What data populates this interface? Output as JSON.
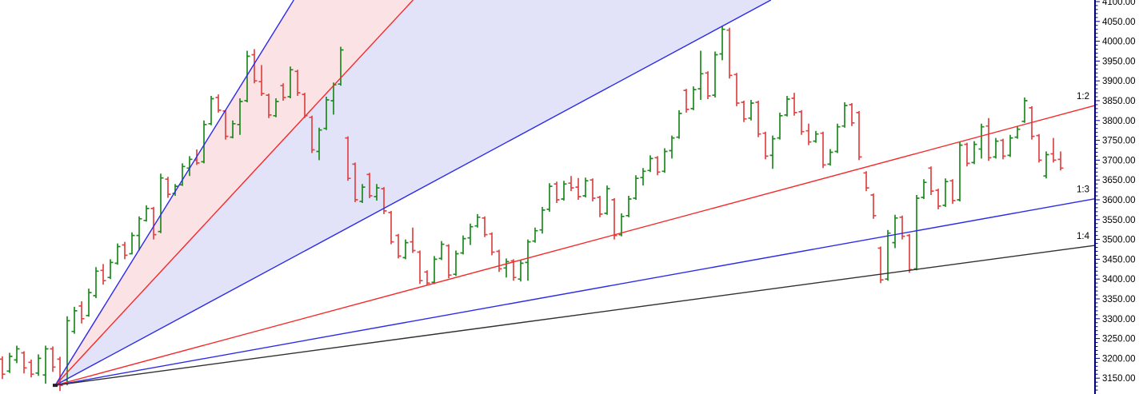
{
  "chart_data": {
    "type": "ohlc_bar",
    "description": "Daily OHLC bar chart with a Gann fan drawn from a swing low; fan rays labelled 1:2, 1:3, 1:4 at the right price axis",
    "price_axis": {
      "side": "right",
      "major_step": 50,
      "minor_step": 10,
      "visible_range": [
        3100,
        4105
      ],
      "labels": [
        "4100.00",
        "4050.00",
        "4000.00",
        "3950.00",
        "3900.00",
        "3850.00",
        "3800.00",
        "3750.00",
        "3700.00",
        "3650.00",
        "3600.00",
        "3550.00",
        "3500.00",
        "3450.00",
        "3400.00",
        "3350.00",
        "3300.00",
        "3250.00",
        "3200.00",
        "3150.00"
      ]
    },
    "gann_fan": {
      "apex_price": 3132,
      "visible_ray_labels": [
        "1:2",
        "1:3",
        "1:4"
      ],
      "rays": [
        {
          "name": "3:1",
          "mult": 3,
          "color": "blue",
          "label": ""
        },
        {
          "name": "2:1",
          "mult": 2,
          "color": "red",
          "label": ""
        },
        {
          "name": "1:1",
          "mult": 1,
          "color": "blue",
          "label": ""
        },
        {
          "name": "1:2",
          "mult": 0.5,
          "color": "red",
          "label": "1:2"
        },
        {
          "name": "1:3",
          "mult": 0.3333,
          "color": "blue",
          "label": "1:3"
        },
        {
          "name": "1:4",
          "mult": 0.25,
          "color": "black",
          "label": "1:4"
        }
      ],
      "shaded_sectors": [
        {
          "between": [
            "3:1",
            "2:1"
          ],
          "fill": "pink"
        },
        {
          "between": [
            "2:1",
            "1:1"
          ],
          "fill": "lavender"
        }
      ]
    },
    "bars_ohlc": [
      [
        3198,
        3205,
        3148,
        3160
      ],
      [
        3168,
        3214,
        3163,
        3205
      ],
      [
        3196,
        3232,
        3188,
        3224
      ],
      [
        3214,
        3218,
        3162,
        3176
      ],
      [
        3190,
        3197,
        3152,
        3160
      ],
      [
        3163,
        3210,
        3156,
        3200
      ],
      [
        3158,
        3232,
        3136,
        3224
      ],
      [
        3224,
        3230,
        3166,
        3178
      ],
      [
        3198,
        3204,
        3118,
        3132
      ],
      [
        3145,
        3306,
        3132,
        3295
      ],
      [
        3268,
        3330,
        3262,
        3320
      ],
      [
        3332,
        3344,
        3288,
        3300
      ],
      [
        3308,
        3376,
        3305,
        3366
      ],
      [
        3358,
        3430,
        3352,
        3420
      ],
      [
        3422,
        3438,
        3386,
        3396
      ],
      [
        3404,
        3450,
        3400,
        3442
      ],
      [
        3440,
        3490,
        3436,
        3482
      ],
      [
        3486,
        3494,
        3450,
        3460
      ],
      [
        3464,
        3518,
        3462,
        3510
      ],
      [
        3510,
        3558,
        3472,
        3552
      ],
      [
        3548,
        3586,
        3545,
        3578
      ],
      [
        3578,
        3582,
        3500,
        3512
      ],
      [
        3520,
        3666,
        3516,
        3655
      ],
      [
        3652,
        3658,
        3605,
        3614
      ],
      [
        3616,
        3640,
        3610,
        3634
      ],
      [
        3638,
        3692,
        3635,
        3684
      ],
      [
        3680,
        3710,
        3660,
        3702
      ],
      [
        3700,
        3727,
        3688,
        3693
      ],
      [
        3696,
        3800,
        3692,
        3790
      ],
      [
        3792,
        3862,
        3788,
        3855
      ],
      [
        3858,
        3866,
        3820,
        3826
      ],
      [
        3824,
        3826,
        3752,
        3760
      ],
      [
        3758,
        3800,
        3755,
        3792
      ],
      [
        3790,
        3856,
        3764,
        3848
      ],
      [
        3850,
        3976,
        3846,
        3962
      ],
      [
        3966,
        3980,
        3894,
        3900
      ],
      [
        3898,
        3940,
        3862,
        3868
      ],
      [
        3864,
        3868,
        3806,
        3814
      ],
      [
        3812,
        3856,
        3808,
        3848
      ],
      [
        3888,
        3894,
        3850,
        3858
      ],
      [
        3860,
        3936,
        3856,
        3928
      ],
      [
        3924,
        3928,
        3862,
        3870
      ],
      [
        3866,
        3870,
        3806,
        3812
      ],
      [
        3808,
        3812,
        3718,
        3726
      ],
      [
        3722,
        3782,
        3700,
        3776
      ],
      [
        3780,
        3860,
        3776,
        3852
      ],
      [
        3850,
        3896,
        3815,
        3890
      ],
      [
        3892,
        3986,
        3888,
        3978
      ],
      [
        3756,
        3760,
        3648,
        3654
      ],
      [
        3690,
        3694,
        3594,
        3600
      ],
      [
        3596,
        3640,
        3592,
        3632
      ],
      [
        3664,
        3668,
        3604,
        3610
      ],
      [
        3608,
        3640,
        3598,
        3630
      ],
      [
        3628,
        3632,
        3564,
        3572
      ],
      [
        3568,
        3572,
        3488,
        3494
      ],
      [
        3510,
        3514,
        3452,
        3458
      ],
      [
        3454,
        3500,
        3450,
        3492
      ],
      [
        3494,
        3530,
        3466,
        3472
      ],
      [
        3468,
        3472,
        3388,
        3396
      ],
      [
        3418,
        3422,
        3384,
        3390
      ],
      [
        3392,
        3458,
        3388,
        3450
      ],
      [
        3452,
        3496,
        3448,
        3488
      ],
      [
        3484,
        3488,
        3402,
        3410
      ],
      [
        3412,
        3472,
        3408,
        3464
      ],
      [
        3466,
        3510,
        3462,
        3502
      ],
      [
        3504,
        3540,
        3486,
        3532
      ],
      [
        3534,
        3564,
        3530,
        3556
      ],
      [
        3554,
        3558,
        3506,
        3512
      ],
      [
        3514,
        3518,
        3460,
        3468
      ],
      [
        3470,
        3474,
        3418,
        3426
      ],
      [
        3428,
        3452,
        3404,
        3444
      ],
      [
        3446,
        3450,
        3396,
        3404
      ],
      [
        3400,
        3448,
        3394,
        3440
      ],
      [
        3442,
        3500,
        3396,
        3494
      ],
      [
        3496,
        3530,
        3492,
        3522
      ],
      [
        3524,
        3582,
        3515,
        3574
      ],
      [
        3576,
        3642,
        3570,
        3634
      ],
      [
        3640,
        3646,
        3592,
        3600
      ],
      [
        3602,
        3648,
        3598,
        3640
      ],
      [
        3642,
        3660,
        3622,
        3630
      ],
      [
        3632,
        3655,
        3600,
        3608
      ],
      [
        3610,
        3656,
        3606,
        3648
      ],
      [
        3650,
        3654,
        3596,
        3604
      ],
      [
        3606,
        3610,
        3556,
        3564
      ],
      [
        3566,
        3636,
        3562,
        3628
      ],
      [
        3600,
        3604,
        3500,
        3510
      ],
      [
        3512,
        3566,
        3508,
        3558
      ],
      [
        3560,
        3610,
        3556,
        3602
      ],
      [
        3604,
        3662,
        3600,
        3654
      ],
      [
        3656,
        3680,
        3636,
        3672
      ],
      [
        3674,
        3712,
        3670,
        3704
      ],
      [
        3706,
        3710,
        3662,
        3670
      ],
      [
        3672,
        3730,
        3668,
        3722
      ],
      [
        3724,
        3762,
        3704,
        3756
      ],
      [
        3758,
        3826,
        3754,
        3818
      ],
      [
        3876,
        3880,
        3820,
        3828
      ],
      [
        3830,
        3886,
        3826,
        3878
      ],
      [
        3880,
        3976,
        3852,
        3918
      ],
      [
        3920,
        3924,
        3854,
        3862
      ],
      [
        3864,
        3974,
        3858,
        3966
      ],
      [
        3968,
        4038,
        3952,
        4030
      ],
      [
        4028,
        4034,
        3906,
        3914
      ],
      [
        3916,
        3920,
        3836,
        3844
      ],
      [
        3846,
        3850,
        3796,
        3804
      ],
      [
        3806,
        3852,
        3800,
        3844
      ],
      [
        3846,
        3850,
        3758,
        3766
      ],
      [
        3768,
        3772,
        3702,
        3710
      ],
      [
        3712,
        3762,
        3678,
        3754
      ],
      [
        3756,
        3820,
        3752,
        3812
      ],
      [
        3814,
        3862,
        3810,
        3854
      ],
      [
        3856,
        3870,
        3812,
        3820
      ],
      [
        3822,
        3826,
        3764,
        3772
      ],
      [
        3774,
        3792,
        3738,
        3746
      ],
      [
        3748,
        3774,
        3744,
        3766
      ],
      [
        3768,
        3772,
        3680,
        3688
      ],
      [
        3690,
        3728,
        3686,
        3720
      ],
      [
        3722,
        3792,
        3718,
        3784
      ],
      [
        3786,
        3846,
        3782,
        3838
      ],
      [
        3840,
        3844,
        3786,
        3794
      ],
      [
        3820,
        3824,
        3700,
        3708
      ],
      [
        3668,
        3672,
        3622,
        3630
      ],
      [
        3612,
        3616,
        3552,
        3560
      ],
      [
        3478,
        3482,
        3390,
        3398
      ],
      [
        3400,
        3524,
        3396,
        3516
      ],
      [
        3492,
        3562,
        3478,
        3554
      ],
      [
        3556,
        3560,
        3500,
        3508
      ],
      [
        3510,
        3514,
        3416,
        3424
      ],
      [
        3426,
        3612,
        3422,
        3604
      ],
      [
        3606,
        3652,
        3602,
        3644
      ],
      [
        3680,
        3684,
        3612,
        3622
      ],
      [
        3624,
        3628,
        3576,
        3584
      ],
      [
        3586,
        3654,
        3582,
        3646
      ],
      [
        3648,
        3652,
        3590,
        3598
      ],
      [
        3600,
        3746,
        3596,
        3738
      ],
      [
        3740,
        3744,
        3684,
        3692
      ],
      [
        3694,
        3748,
        3690,
        3740
      ],
      [
        3728,
        3792,
        3704,
        3784
      ],
      [
        3786,
        3806,
        3698,
        3706
      ],
      [
        3708,
        3756,
        3704,
        3748
      ],
      [
        3750,
        3754,
        3702,
        3710
      ],
      [
        3712,
        3764,
        3708,
        3756
      ],
      [
        3758,
        3786,
        3754,
        3778
      ],
      [
        3798,
        3858,
        3794,
        3850
      ],
      [
        3832,
        3836,
        3752,
        3760
      ],
      [
        3762,
        3766,
        3694,
        3700
      ],
      [
        3660,
        3722,
        3654,
        3714
      ],
      [
        3716,
        3756,
        3694,
        3700
      ],
      [
        3702,
        3722,
        3674,
        3680
      ]
    ]
  },
  "colors": {
    "background": "#FFFFFF",
    "bar_up": "#1E8A1E",
    "bar_down": "#E04444",
    "fan_red": "#F32B2B",
    "fan_blue": "#2B2BE8",
    "fan_black": "#303030",
    "fill_pink": "#FBE2E4",
    "fill_lavender": "#E2E2F8",
    "axis_line": "#000080",
    "label_text": "#000000"
  }
}
